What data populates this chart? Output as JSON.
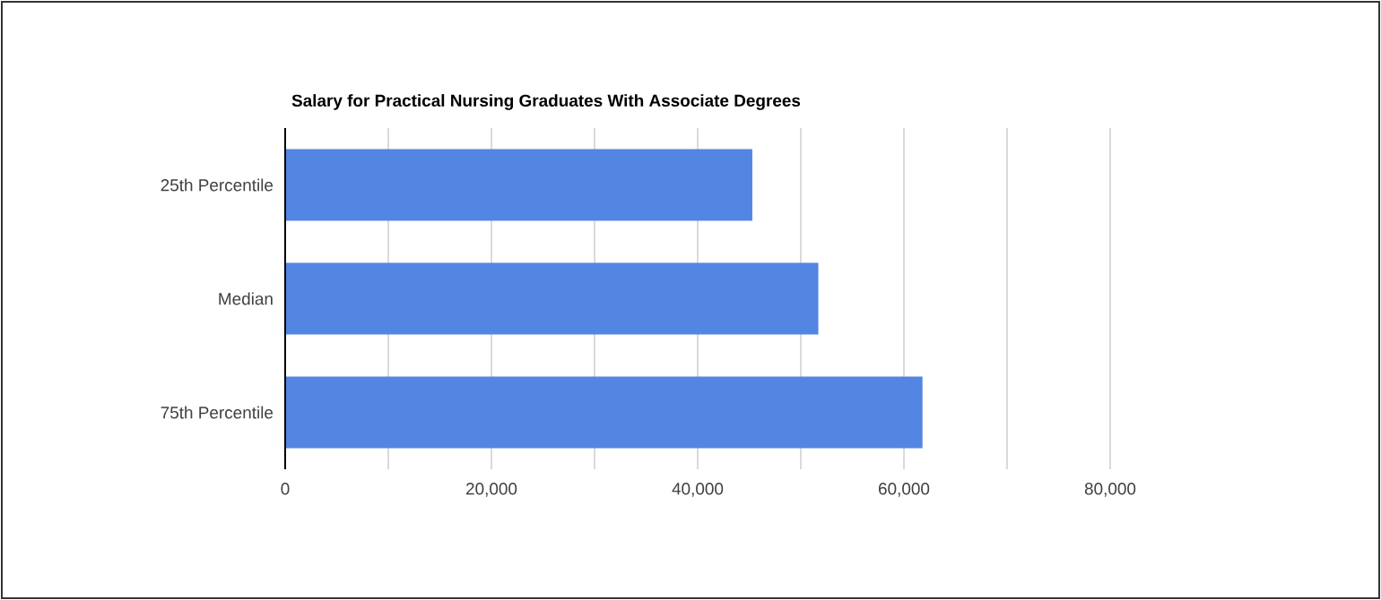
{
  "chart_data": {
    "type": "bar",
    "orientation": "horizontal",
    "title": "Salary for Practical Nursing Graduates With Associate Degrees",
    "categories": [
      "25th Percentile",
      "Median",
      "75th Percentile"
    ],
    "values": [
      45300,
      51700,
      61800
    ],
    "color": "#5385e2",
    "xlim": [
      0,
      80000
    ],
    "xticks": [
      {
        "value": 0,
        "label": "0"
      },
      {
        "value": 10000,
        "label": null
      },
      {
        "value": 20000,
        "label": "20,000"
      },
      {
        "value": 30000,
        "label": null
      },
      {
        "value": 40000,
        "label": "40,000"
      },
      {
        "value": 50000,
        "label": null
      },
      {
        "value": 60000,
        "label": "60,000"
      },
      {
        "value": 70000,
        "label": null
      },
      {
        "value": 80000,
        "label": "80,000"
      }
    ],
    "grid": "x"
  }
}
